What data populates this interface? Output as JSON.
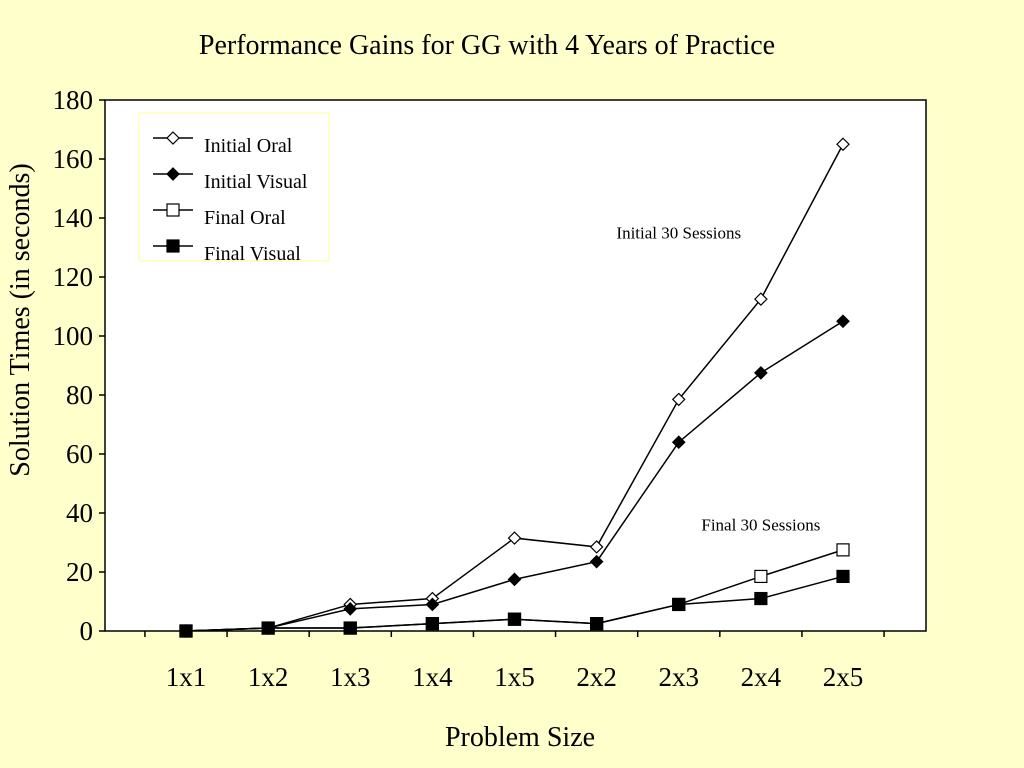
{
  "chart_data": {
    "type": "line",
    "title": "Performance Gains for GG with 4 Years of Practice",
    "xlabel": "Problem Size",
    "ylabel": "Solution Times (in seconds)",
    "categories": [
      "1x1",
      "1x2",
      "1x3",
      "1x4",
      "1x5",
      "2x2",
      "2x3",
      "2x4",
      "2x5"
    ],
    "ylim": [
      0,
      180
    ],
    "yticks": [
      0,
      20,
      40,
      60,
      80,
      100,
      120,
      140,
      160,
      180
    ],
    "grid": false,
    "legend_position": "top-left",
    "series": [
      {
        "name": "Initial Oral",
        "marker": "diamond-open",
        "values": [
          0,
          1,
          9,
          11,
          31.5,
          28.5,
          78.5,
          112.5,
          165
        ]
      },
      {
        "name": "Initial Visual",
        "marker": "diamond-filled",
        "values": [
          0,
          1,
          7.5,
          9,
          17.5,
          23.5,
          64,
          87.5,
          105
        ]
      },
      {
        "name": "Final Oral",
        "marker": "square-open",
        "values": [
          0,
          1,
          1,
          2.5,
          4,
          2.5,
          9,
          18.5,
          27.5
        ]
      },
      {
        "name": "Final Visual",
        "marker": "square-filled",
        "values": [
          0,
          1,
          1,
          2.5,
          4,
          2.5,
          9,
          11,
          18.5
        ]
      }
    ],
    "annotations": [
      {
        "text": "Initial 30 Sessions",
        "category": "2x3",
        "y": 133
      },
      {
        "text": "Final 30 Sessions",
        "category": "2x4",
        "y": 34
      }
    ],
    "colors": {
      "background": "#ffffcc",
      "plot_area": "#ffffff",
      "line": "#000000",
      "legend_border": "#ffff99"
    }
  }
}
